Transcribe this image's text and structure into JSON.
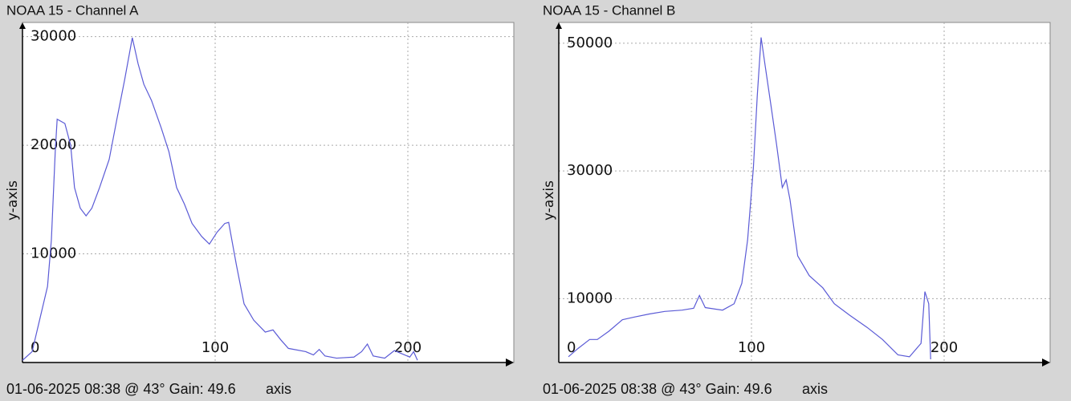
{
  "chart_data": [
    {
      "type": "line",
      "title": "NOAA 15 - Channel A",
      "y_label": "y-axis",
      "x_label": "x-axis",
      "caption": "01-06-2025 08:38 @ 43° Gain: 49.6",
      "x": [
        0,
        5,
        9,
        13,
        15,
        17,
        18,
        22,
        25,
        27,
        30,
        33,
        36,
        40,
        45,
        49,
        53,
        57,
        60,
        63,
        67,
        72,
        76,
        80,
        84,
        88,
        93,
        97,
        101,
        105,
        107,
        111,
        115,
        120,
        126,
        130,
        134,
        138,
        147,
        151,
        154,
        157,
        163,
        172,
        176,
        179,
        182,
        188,
        193,
        197,
        201,
        203,
        205
      ],
      "series": [
        {
          "name": "Channel A",
          "color": "#5b5bd6",
          "values": [
            200,
            1000,
            4000,
            7000,
            11300,
            19400,
            22400,
            22000,
            20000,
            16100,
            14200,
            13500,
            14200,
            16100,
            18700,
            22400,
            26000,
            29900,
            27500,
            25600,
            24100,
            21600,
            19400,
            16100,
            14600,
            12800,
            11600,
            10900,
            12000,
            12800,
            12900,
            9000,
            5400,
            3900,
            2800,
            3000,
            2100,
            1300,
            1000,
            700,
            1200,
            600,
            400,
            500,
            1000,
            1700,
            600,
            400,
            1100,
            800,
            500,
            1000,
            200
          ]
        }
      ],
      "xlim": [
        0,
        255
      ],
      "ylim": [
        0,
        31300
      ],
      "xticks": [
        0,
        100,
        200
      ],
      "yticks": [
        10000,
        20000,
        30000
      ],
      "grid": true
    },
    {
      "type": "line",
      "title": "NOAA 15 - Channel B",
      "y_label": "y-axis",
      "x_label": "x-axis",
      "caption": "01-06-2025 08:38 @ 43° Gain: 49.6",
      "x": [
        5,
        10,
        16,
        20,
        26,
        33,
        39,
        47,
        55,
        64,
        70,
        73,
        76,
        85,
        91,
        95,
        98,
        101,
        103,
        105,
        107,
        110,
        113,
        116,
        118,
        120,
        124,
        130,
        137,
        143,
        151,
        160,
        168,
        176,
        182,
        188,
        190,
        192,
        193
      ],
      "series": [
        {
          "name": "Channel B",
          "color": "#5b5bd6",
          "values": [
            900,
            2200,
            3600,
            3600,
            4900,
            6700,
            7100,
            7600,
            8000,
            8200,
            8500,
            10500,
            8600,
            8200,
            9200,
            12400,
            19200,
            30500,
            41700,
            50900,
            46700,
            40500,
            34200,
            27400,
            28600,
            25500,
            16700,
            13600,
            11700,
            9200,
            7400,
            5500,
            3600,
            1200,
            900,
            3000,
            11100,
            9200,
            500
          ]
        }
      ],
      "xlim": [
        0,
        255
      ],
      "ylim": [
        0,
        53250
      ],
      "xticks": [
        0,
        100,
        200
      ],
      "yticks": [
        10000,
        30000,
        50000
      ],
      "grid": true
    }
  ]
}
